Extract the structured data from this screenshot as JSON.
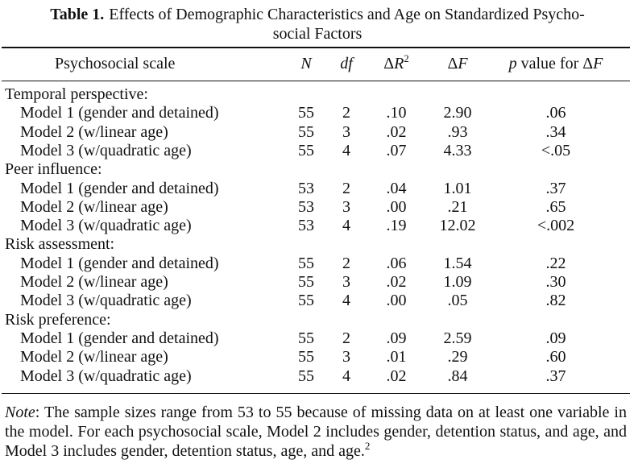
{
  "title": {
    "label": "Table 1.",
    "line1": "Effects of Demographic Characteristics and Age on Standardized Psycho-",
    "line2": "social Factors"
  },
  "header": {
    "scale": "Psychosocial scale",
    "n": "N",
    "df": "df",
    "r2_prefix": "Δ",
    "r2_var": "R",
    "r2_sup": "2",
    "f_prefix": "Δ",
    "f_var": "F",
    "p_var": "p",
    "p_text": " value for ",
    "p_delta": "Δ",
    "p_f": "F"
  },
  "groups": [
    {
      "name": "Temporal perspective:",
      "rows": [
        {
          "model": "Model 1 (gender and detained)",
          "n": "55",
          "df": "2",
          "dr2": ".10",
          "df_val": "2.90",
          "p": ".06"
        },
        {
          "model": "Model 2 (w/linear age)",
          "n": "55",
          "df": "3",
          "dr2": ".02",
          "df_val": ".93",
          "p": ".34"
        },
        {
          "model": "Model 3 (w/quadratic age)",
          "n": "55",
          "df": "4",
          "dr2": ".07",
          "df_val": "4.33",
          "p": "<.05"
        }
      ]
    },
    {
      "name": "Peer influence:",
      "rows": [
        {
          "model": "Model 1 (gender and detained)",
          "n": "53",
          "df": "2",
          "dr2": ".04",
          "df_val": "1.01",
          "p": ".37"
        },
        {
          "model": "Model 2 (w/linear age)",
          "n": "53",
          "df": "3",
          "dr2": ".00",
          "df_val": ".21",
          "p": ".65"
        },
        {
          "model": "Model 3 (w/quadratic age)",
          "n": "53",
          "df": "4",
          "dr2": ".19",
          "df_val": "12.02",
          "p": "<.002"
        }
      ]
    },
    {
      "name": "Risk assessment:",
      "rows": [
        {
          "model": "Model 1 (gender and detained)",
          "n": "55",
          "df": "2",
          "dr2": ".06",
          "df_val": "1.54",
          "p": ".22"
        },
        {
          "model": "Model 2 (w/linear age)",
          "n": "55",
          "df": "3",
          "dr2": ".02",
          "df_val": "1.09",
          "p": ".30"
        },
        {
          "model": "Model 3 (w/quadratic age)",
          "n": "55",
          "df": "4",
          "dr2": ".00",
          "df_val": ".05",
          "p": ".82"
        }
      ]
    },
    {
      "name": "Risk preference:",
      "rows": [
        {
          "model": "Model 1 (gender and detained)",
          "n": "55",
          "df": "2",
          "dr2": ".09",
          "df_val": "2.59",
          "p": ".09"
        },
        {
          "model": "Model 2 (w/linear age)",
          "n": "55",
          "df": "3",
          "dr2": ".01",
          "df_val": ".29",
          "p": ".60"
        },
        {
          "model": "Model 3 (w/quadratic age)",
          "n": "55",
          "df": "4",
          "dr2": ".02",
          "df_val": ".84",
          "p": ".37"
        }
      ]
    }
  ],
  "note": {
    "lead": "Note",
    "text": ": The sample sizes range from 53 to 55 because of missing data on at least one variable in the model. For each psychosocial scale, Model 2 includes gender, detention status, and age, and Model 3 includes gender, detention status, age, and age.",
    "sup": "2"
  }
}
